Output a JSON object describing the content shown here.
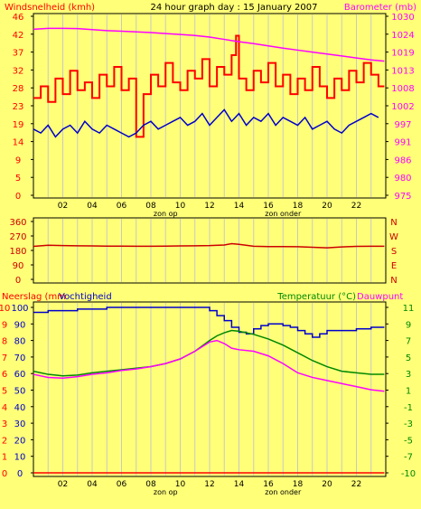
{
  "page_title": "24 hour graph day : 15 January 2007",
  "colors": {
    "background": "#ffff78",
    "grid": "#c8c8c8",
    "wind": "#ff0000",
    "gust": "#0000cc",
    "barometer": "#ff00ff",
    "direction": "#cc0000",
    "rain": "#ff0000",
    "humidity": "#0000cc",
    "temperature": "#008800",
    "dewpoint": "#ff00ff",
    "temp_axis_label": "#008800"
  },
  "chart_data": [
    {
      "type": "line",
      "panel": "wind-barometer",
      "ylabel_left": "Windsnelheid (kmh)",
      "ylabel_right": "Barometer (mb)",
      "left_ticks": [
        46,
        42,
        37,
        32,
        28,
        23,
        19,
        14,
        9,
        5,
        0
      ],
      "right_ticks": [
        1030,
        1024,
        1019,
        1013,
        1008,
        1002,
        997,
        991,
        986,
        980,
        975
      ],
      "ylim_left": [
        0,
        46
      ],
      "ylim_right": [
        975,
        1030
      ],
      "xlim": [
        0,
        24
      ],
      "x_ticks": [
        "02",
        "04",
        "06",
        "08",
        "10",
        "12",
        "14",
        "16",
        "18",
        "20",
        "22"
      ],
      "x_annotations": [
        {
          "x": 9,
          "text": "zon op"
        },
        {
          "x": 17,
          "text": "zon onder"
        }
      ],
      "series": [
        {
          "key": "wind",
          "kind": "step",
          "x": [
            0,
            0.5,
            1,
            1.5,
            2,
            2.5,
            3,
            3.5,
            4,
            4.5,
            5,
            5.5,
            6,
            6.5,
            7,
            7.5,
            8,
            8.5,
            9,
            9.5,
            10,
            10.5,
            11,
            11.5,
            12,
            12.5,
            13,
            13.5,
            13.8,
            14,
            14.5,
            15,
            15.5,
            16,
            16.5,
            17,
            17.5,
            18,
            18.5,
            19,
            19.5,
            20,
            20.5,
            21,
            21.5,
            22,
            22.5,
            23,
            23.5
          ],
          "values": [
            25,
            28,
            24,
            30,
            26,
            32,
            27,
            29,
            25,
            31,
            28,
            33,
            27,
            30,
            15,
            26,
            31,
            28,
            34,
            29,
            27,
            32,
            30,
            35,
            28,
            33,
            31,
            36,
            41,
            30,
            27,
            32,
            29,
            34,
            28,
            31,
            26,
            30,
            27,
            33,
            28,
            25,
            30,
            27,
            32,
            29,
            34,
            31,
            28
          ]
        },
        {
          "key": "gust",
          "kind": "line",
          "x": [
            0,
            0.5,
            1,
            1.5,
            2,
            2.5,
            3,
            3.5,
            4,
            4.5,
            5,
            5.5,
            6,
            6.5,
            7,
            7.5,
            8,
            8.5,
            9,
            9.5,
            10,
            10.5,
            11,
            11.5,
            12,
            12.5,
            13,
            13.5,
            14,
            14.5,
            15,
            15.5,
            16,
            16.5,
            17,
            17.5,
            18,
            18.5,
            19,
            19.5,
            20,
            20.5,
            21,
            21.5,
            22,
            22.5,
            23,
            23.5
          ],
          "values": [
            17,
            16,
            18,
            15,
            17,
            18,
            16,
            19,
            17,
            16,
            18,
            17,
            16,
            15,
            16,
            18,
            19,
            17,
            18,
            19,
            20,
            18,
            19,
            21,
            18,
            20,
            22,
            19,
            21,
            18,
            20,
            19,
            21,
            18,
            20,
            19,
            18,
            20,
            17,
            18,
            19,
            17,
            16,
            18,
            19,
            20,
            21,
            20
          ]
        },
        {
          "key": "barometer",
          "kind": "line",
          "axis": "right",
          "x": [
            0,
            1,
            2,
            3,
            4,
            5,
            6,
            7,
            8,
            9,
            10,
            11,
            12,
            13,
            14,
            15,
            16,
            17,
            18,
            19,
            20,
            21,
            22,
            23,
            23.9
          ],
          "values": [
            1026,
            1026.3,
            1026.3,
            1026.2,
            1025.9,
            1025.6,
            1025.4,
            1025.2,
            1025,
            1024.7,
            1024.4,
            1024.1,
            1023.6,
            1022.9,
            1022.2,
            1021.6,
            1020.9,
            1020.2,
            1019.6,
            1019,
            1018.4,
            1017.8,
            1017.2,
            1016.6,
            1016.2
          ]
        }
      ]
    },
    {
      "type": "line",
      "panel": "wind-direction",
      "left_ticks": [
        360,
        270,
        180,
        90,
        0
      ],
      "right_ticks": [
        "N",
        "W",
        "S",
        "E",
        "N"
      ],
      "ylim": [
        0,
        360
      ],
      "xlim": [
        0,
        24
      ],
      "series": [
        {
          "key": "direction",
          "kind": "line",
          "x": [
            0,
            1,
            2,
            3,
            4,
            5,
            6,
            7,
            8,
            9,
            10,
            11,
            12,
            13,
            13.5,
            14,
            15,
            16,
            17,
            18,
            19,
            20,
            21,
            22,
            23,
            23.9
          ],
          "values": [
            205,
            212,
            210,
            209,
            208,
            207,
            207,
            206,
            206,
            207,
            208,
            209,
            210,
            214,
            222,
            218,
            206,
            204,
            204,
            203,
            200,
            196,
            202,
            205,
            206,
            206
          ]
        }
      ]
    },
    {
      "type": "line",
      "panel": "rain-humidity-temperature",
      "ylabel_left_rain": "Neerslag (mm",
      "ylabel_left_hum": "Vochtigheid",
      "ylabel_right_temp": "Temperatuur (°C)",
      "ylabel_right_dew": "Dauwpunt",
      "left_ticks": [
        10,
        9,
        8,
        7,
        6,
        5,
        4,
        3,
        2,
        1,
        0
      ],
      "hum_ticks": [
        100,
        90,
        80,
        70,
        60,
        50,
        40,
        30,
        20,
        10,
        0
      ],
      "right_ticks": [
        11,
        9,
        7,
        5,
        3,
        1,
        -1,
        -3,
        -5,
        -7,
        -10
      ],
      "ylim_temp": [
        -10,
        11.5
      ],
      "ylim_hum": [
        0,
        100
      ],
      "xlim": [
        0,
        24
      ],
      "x_ticks": [
        "02",
        "04",
        "06",
        "08",
        "10",
        "12",
        "14",
        "16",
        "18",
        "20",
        "22"
      ],
      "x_annotations": [
        {
          "x": 9,
          "text": "zon op"
        },
        {
          "x": 17,
          "text": "zon onder"
        }
      ],
      "series": [
        {
          "key": "humidity",
          "kind": "step",
          "axis": "hum",
          "x": [
            0,
            1,
            2,
            3,
            4,
            5,
            6,
            7,
            8,
            9,
            10,
            11,
            11.5,
            12,
            12.5,
            13,
            13.5,
            14,
            14.5,
            15,
            15.5,
            16,
            16.5,
            17,
            17.5,
            18,
            18.5,
            19,
            19.5,
            20,
            20.5,
            21,
            21.5,
            22,
            22.5,
            23,
            23.9
          ],
          "values": [
            97,
            98,
            98,
            99,
            99,
            100,
            100,
            100,
            100,
            100,
            100,
            100,
            100,
            98,
            95,
            92,
            88,
            85,
            84,
            87,
            89,
            90,
            90,
            89,
            88,
            86,
            84,
            82,
            84,
            86,
            86,
            86,
            86,
            87,
            87,
            88,
            88
          ]
        },
        {
          "key": "temperature",
          "kind": "line",
          "axis": "temp",
          "x": [
            0,
            1,
            2,
            3,
            4,
            5,
            6,
            7,
            8,
            9,
            10,
            11,
            12,
            12.5,
            13,
            13.5,
            14,
            15,
            16,
            17,
            18,
            19,
            20,
            21,
            22,
            23,
            23.9
          ],
          "values": [
            3.2,
            2.8,
            2.6,
            2.7,
            3.0,
            3.2,
            3.4,
            3.6,
            3.8,
            4.2,
            4.8,
            5.8,
            7.2,
            7.8,
            8.2,
            8.5,
            8.4,
            8.0,
            7.4,
            6.6,
            5.6,
            4.6,
            3.8,
            3.2,
            3.0,
            2.8,
            2.8
          ]
        },
        {
          "key": "dewpoint",
          "kind": "line",
          "axis": "temp",
          "x": [
            0,
            1,
            2,
            3,
            4,
            5,
            6,
            7,
            8,
            9,
            10,
            11,
            12,
            12.5,
            13,
            13.5,
            14,
            15,
            16,
            17,
            18,
            19,
            20,
            21,
            22,
            23,
            23.9
          ],
          "values": [
            2.8,
            2.4,
            2.3,
            2.5,
            2.8,
            3.0,
            3.3,
            3.5,
            3.8,
            4.2,
            4.8,
            5.8,
            7.0,
            7.2,
            6.8,
            6.2,
            6.0,
            5.8,
            5.2,
            4.2,
            3.0,
            2.4,
            2.0,
            1.6,
            1.2,
            0.8,
            0.6
          ]
        },
        {
          "key": "rain",
          "kind": "line",
          "axis": "rain",
          "x": [
            0,
            23.9
          ],
          "values": [
            0,
            0
          ]
        }
      ]
    }
  ]
}
